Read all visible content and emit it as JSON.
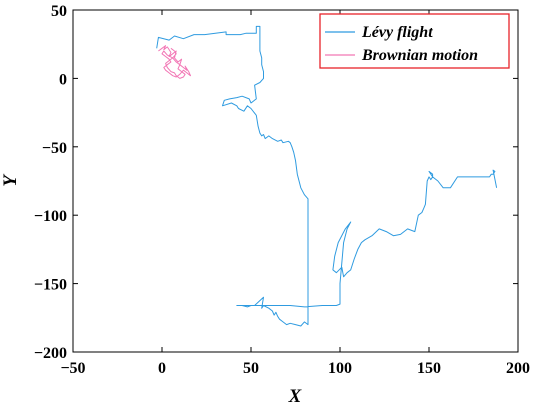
{
  "chart_data": {
    "type": "line",
    "xlabel": "X",
    "ylabel": "Y",
    "xlim": [
      -50,
      200
    ],
    "ylim": [
      -200,
      50
    ],
    "xticks": [
      -50,
      0,
      50,
      100,
      150,
      200
    ],
    "yticks": [
      50,
      0,
      -50,
      -100,
      -150,
      -200
    ],
    "grid": false,
    "legend_placement": "top-right",
    "series": [
      {
        "name": "Lévy flight",
        "color": "#2f9be0",
        "x": [
          -3,
          -2,
          4,
          7,
          12,
          18,
          19,
          24,
          30,
          36,
          36,
          40,
          44,
          47,
          50,
          52,
          53,
          53,
          54,
          55,
          55,
          56,
          56,
          57,
          57,
          55,
          52,
          53,
          50,
          49,
          45,
          42,
          38,
          35,
          34,
          39,
          42,
          43,
          46,
          48,
          50,
          53,
          54,
          55,
          56,
          57,
          58,
          60,
          62,
          65,
          67,
          68,
          71,
          72,
          73,
          74,
          75,
          76,
          78,
          80,
          82,
          82,
          82,
          82,
          82,
          80,
          78,
          75,
          72,
          70,
          68,
          66,
          65,
          64,
          63,
          62,
          60,
          57,
          56,
          57,
          52,
          50,
          48,
          45,
          42,
          55,
          65,
          72,
          80,
          90,
          98,
          100,
          100,
          101,
          102,
          104,
          106,
          103,
          99,
          97,
          96,
          98,
          101,
          102,
          104,
          106,
          108,
          110,
          112,
          114,
          118,
          122,
          126,
          130,
          134,
          138,
          142,
          144,
          146,
          147,
          148,
          149,
          150,
          151,
          152,
          152,
          150,
          152,
          155,
          158,
          162,
          166,
          172,
          176,
          180,
          184,
          185,
          186,
          187,
          186,
          188
        ],
        "y": [
          22,
          30,
          28,
          31,
          29,
          32,
          32,
          32,
          33,
          34,
          32,
          32,
          32,
          33,
          33,
          33,
          33,
          38,
          38,
          38,
          20,
          15,
          10,
          5,
          0,
          -3,
          -5,
          -15,
          -18,
          -15,
          -13,
          -14,
          -15,
          -16,
          -20,
          -18,
          -20,
          -22,
          -24,
          -20,
          -22,
          -27,
          -35,
          -40,
          -42,
          -41,
          -44,
          -42,
          -44,
          -46,
          -45,
          -47,
          -46,
          -47,
          -50,
          -54,
          -60,
          -70,
          -80,
          -85,
          -88,
          -100,
          -120,
          -150,
          -180,
          -178,
          -181,
          -180,
          -179,
          -180,
          -178,
          -176,
          -174,
          -171,
          -173,
          -170,
          -168,
          -166,
          -168,
          -160,
          -166,
          -166,
          -167,
          -166,
          -166,
          -166,
          -166,
          -166,
          -167,
          -166,
          -166,
          -165,
          -150,
          -135,
          -120,
          -110,
          -105,
          -110,
          -120,
          -130,
          -140,
          -142,
          -138,
          -145,
          -142,
          -140,
          -132,
          -125,
          -120,
          -118,
          -115,
          -110,
          -112,
          -115,
          -114,
          -110,
          -112,
          -100,
          -98,
          -95,
          -92,
          -75,
          -72,
          -74,
          -72,
          -70,
          -68,
          -72,
          -75,
          -80,
          -80,
          -72,
          -72,
          -72,
          -72,
          -72,
          -70,
          -70,
          -68,
          -67,
          -80
        ]
      },
      {
        "name": "Brownian motion",
        "color": "#f277b5",
        "x": [
          -2,
          0,
          2,
          1,
          3,
          5,
          4,
          6,
          8,
          7,
          9,
          11,
          10,
          12,
          14,
          13,
          15,
          16,
          14,
          12,
          10,
          8,
          6,
          4,
          2,
          1,
          3,
          5,
          4,
          2,
          0,
          1,
          3,
          6,
          8,
          10,
          9,
          11,
          13,
          12,
          10,
          8,
          7,
          5,
          3,
          2,
          4,
          6,
          8,
          7,
          5
        ],
        "y": [
          20,
          22,
          24,
          21,
          23,
          19,
          16,
          18,
          20,
          15,
          12,
          14,
          10,
          8,
          6,
          9,
          5,
          2,
          4,
          6,
          3,
          1,
          2,
          4,
          6,
          8,
          10,
          12,
          14,
          16,
          18,
          20,
          17,
          15,
          12,
          10,
          7,
          5,
          3,
          1,
          0,
          2,
          4,
          5,
          8,
          11,
          13,
          15,
          18,
          20,
          22
        ]
      }
    ]
  }
}
